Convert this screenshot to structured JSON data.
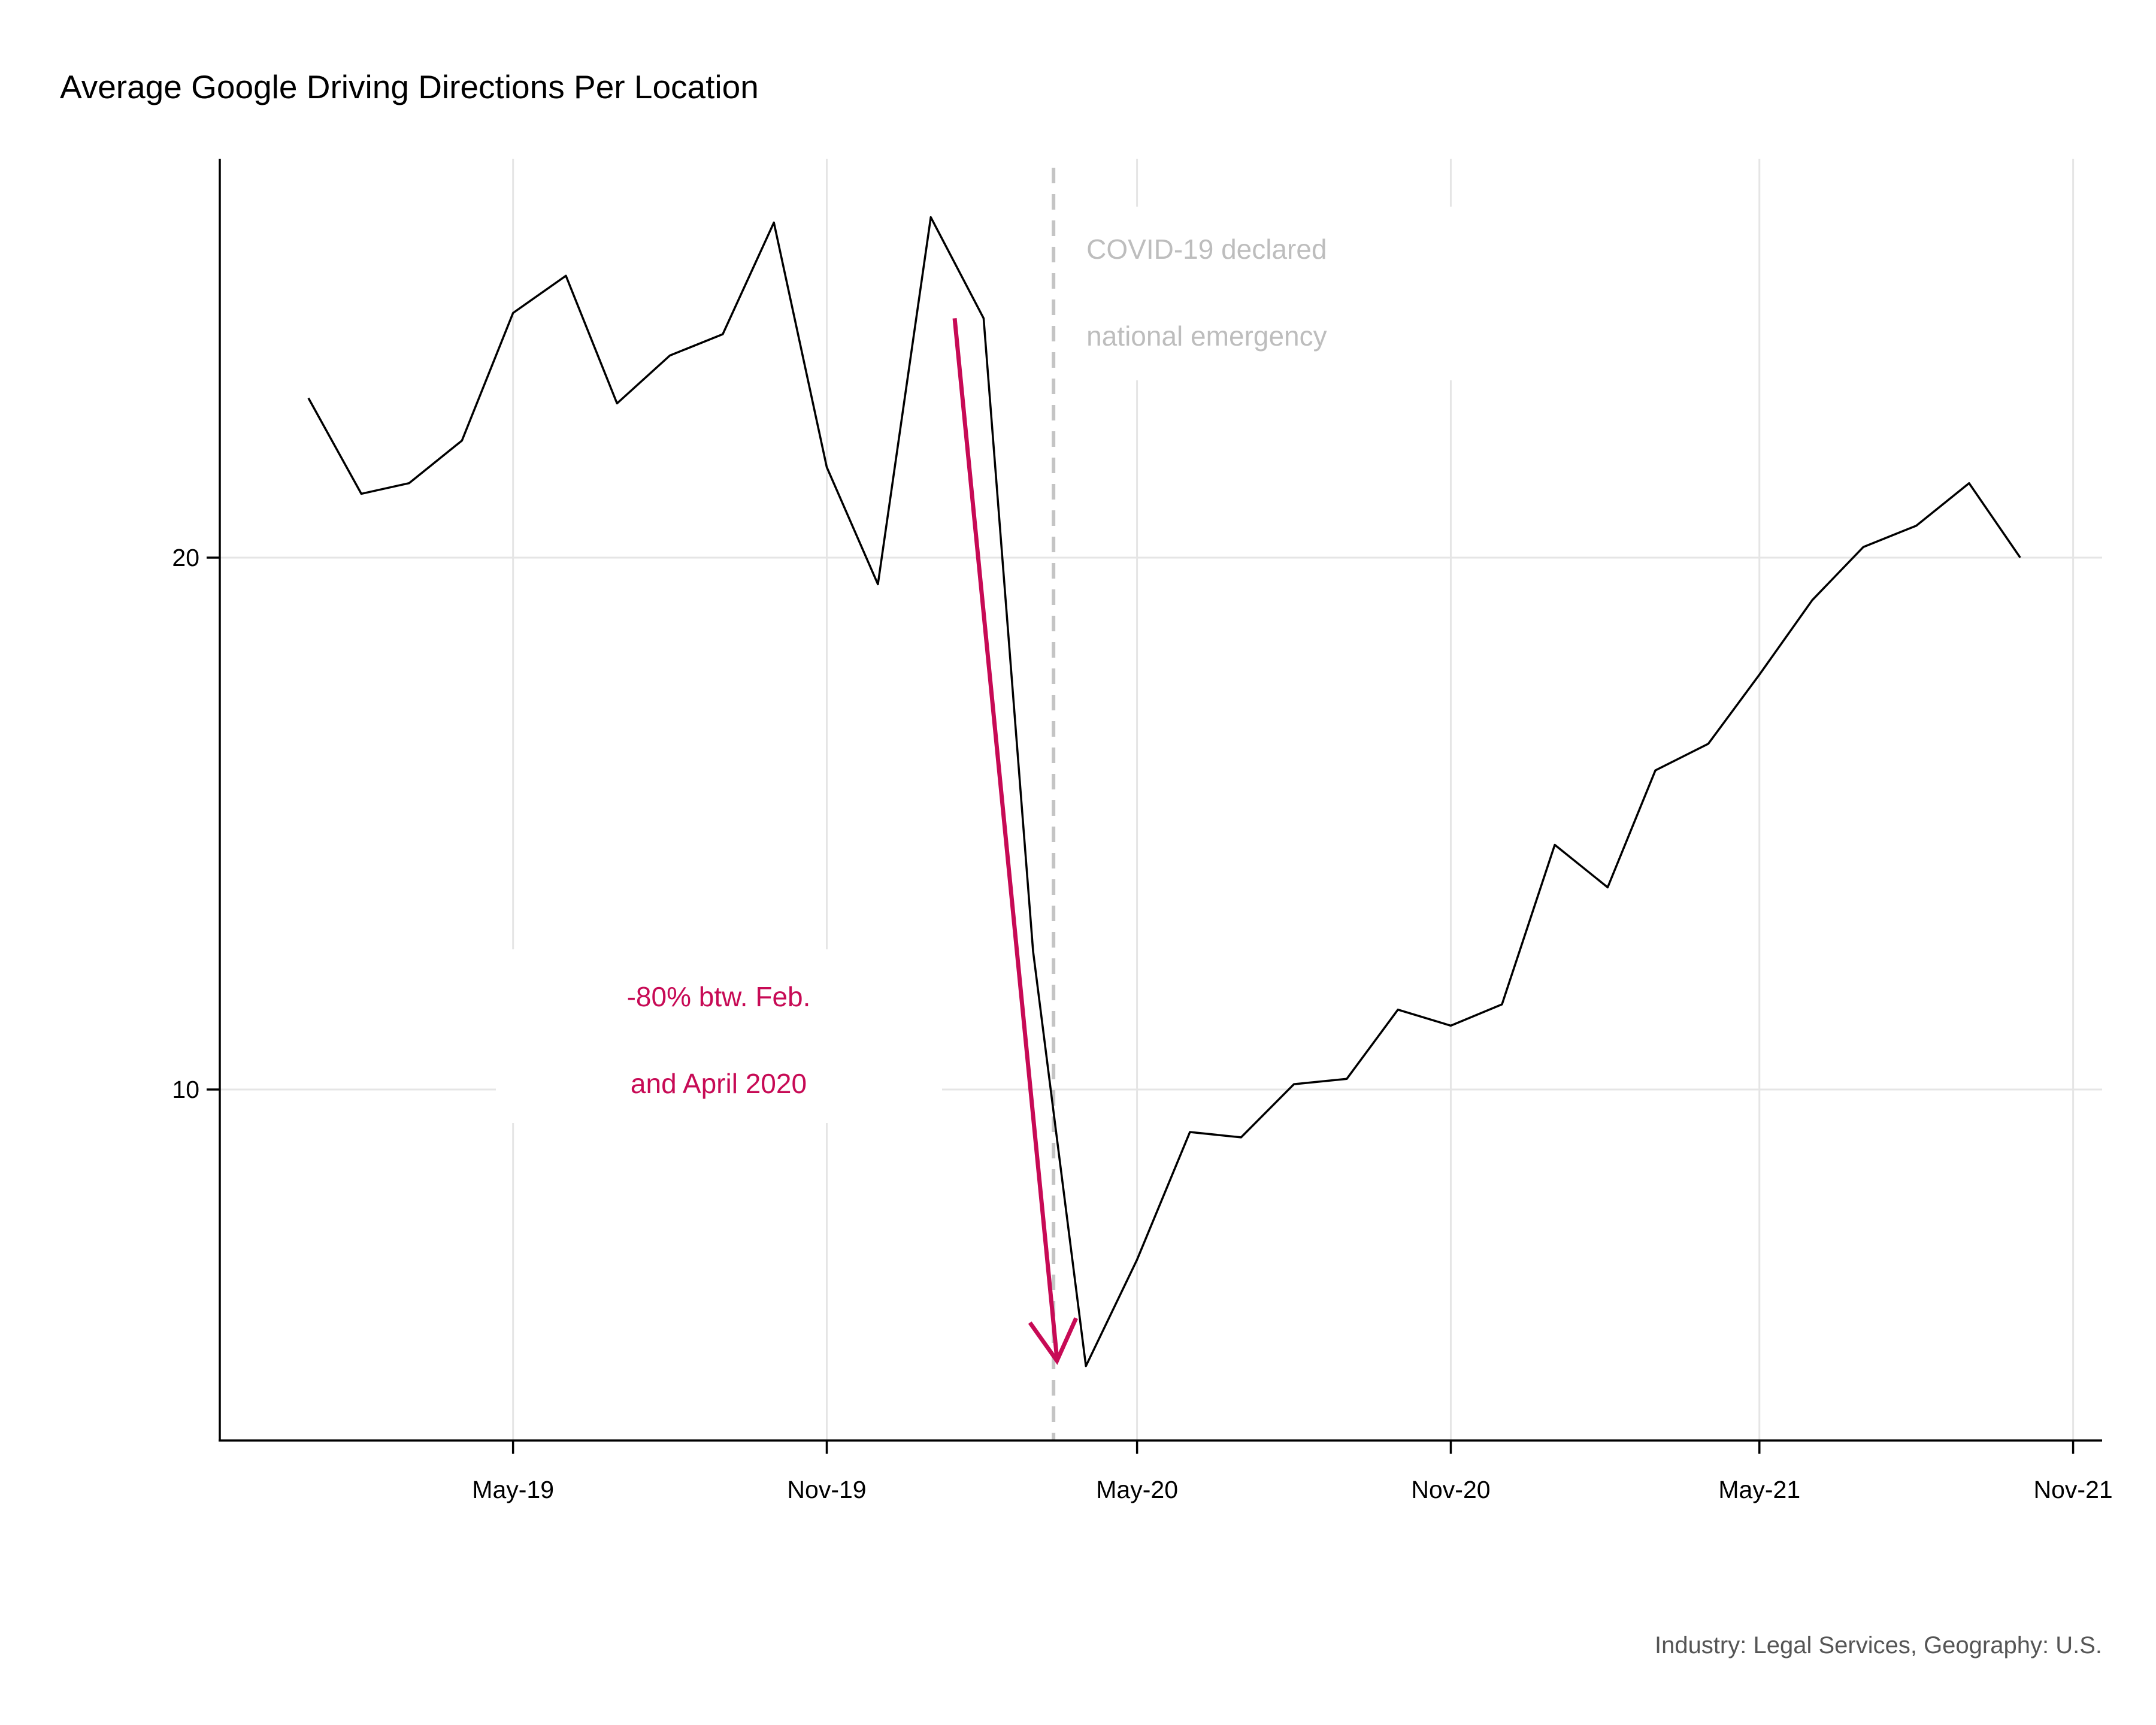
{
  "chart_data": {
    "type": "line",
    "title": "Average Google Driving Directions Per Location",
    "xlabel": "",
    "ylabel": "",
    "caption": "Industry: Legal Services, Geography: U.S.",
    "y_ticks": [
      10,
      20
    ],
    "y_tick_labels": [
      "10",
      "20"
    ],
    "ylim": [
      3.4,
      27.5
    ],
    "x_ticks": [
      "2019-05-01",
      "2019-11-01",
      "2020-05-01",
      "2020-11-01",
      "2021-05-01",
      "2021-11-01"
    ],
    "x_tick_labels": [
      "May-19",
      "Nov-19",
      "May-20",
      "Nov-20",
      "May-21",
      "Nov-21"
    ],
    "xlim": [
      "2018-11-10",
      "2021-11-18"
    ],
    "grid": true,
    "series": [
      {
        "x": [
          "2019-01-01",
          "2019-02-01",
          "2019-03-01",
          "2019-04-01",
          "2019-05-01",
          "2019-06-01",
          "2019-07-01",
          "2019-08-01",
          "2019-09-01",
          "2019-10-01",
          "2019-11-01",
          "2019-12-01",
          "2020-01-01",
          "2020-02-01",
          "2020-03-01",
          "2020-04-01",
          "2020-05-01",
          "2020-06-01",
          "2020-07-01",
          "2020-08-01",
          "2020-09-01",
          "2020-10-01",
          "2020-11-01",
          "2020-12-01",
          "2021-01-01",
          "2021-02-01",
          "2021-03-01",
          "2021-04-01",
          "2021-05-01",
          "2021-06-01",
          "2021-07-01",
          "2021-08-01",
          "2021-09-01",
          "2021-10-01"
        ],
        "values": [
          23.0,
          21.2,
          21.4,
          22.2,
          24.6,
          25.3,
          22.9,
          23.8,
          24.2,
          26.3,
          21.7,
          19.5,
          26.4,
          24.5,
          12.6,
          4.8,
          6.8,
          9.2,
          9.1,
          10.1,
          10.2,
          11.5,
          11.2,
          11.6,
          14.6,
          13.8,
          16.0,
          16.5,
          17.8,
          19.2,
          20.2,
          20.6,
          21.4,
          20.0
        ]
      }
    ],
    "annotations": {
      "vline_date": "2020-03-13",
      "vline_label_line1": "COVID-19 declared",
      "vline_label_line2": "national emergency",
      "arrow_from": {
        "x": "2020-01-15",
        "y": 24.5
      },
      "arrow_to": {
        "x": "2020-03-15",
        "y": 4.9
      },
      "arrow_label_line1": "-80% btw. Feb.",
      "arrow_label_line2": "and April 2020"
    },
    "colors": {
      "line": "#000000",
      "annotation": "#c70a55",
      "vline": "#c4c4c4",
      "grid": "#e5e5e5",
      "caption": "#555555"
    }
  }
}
